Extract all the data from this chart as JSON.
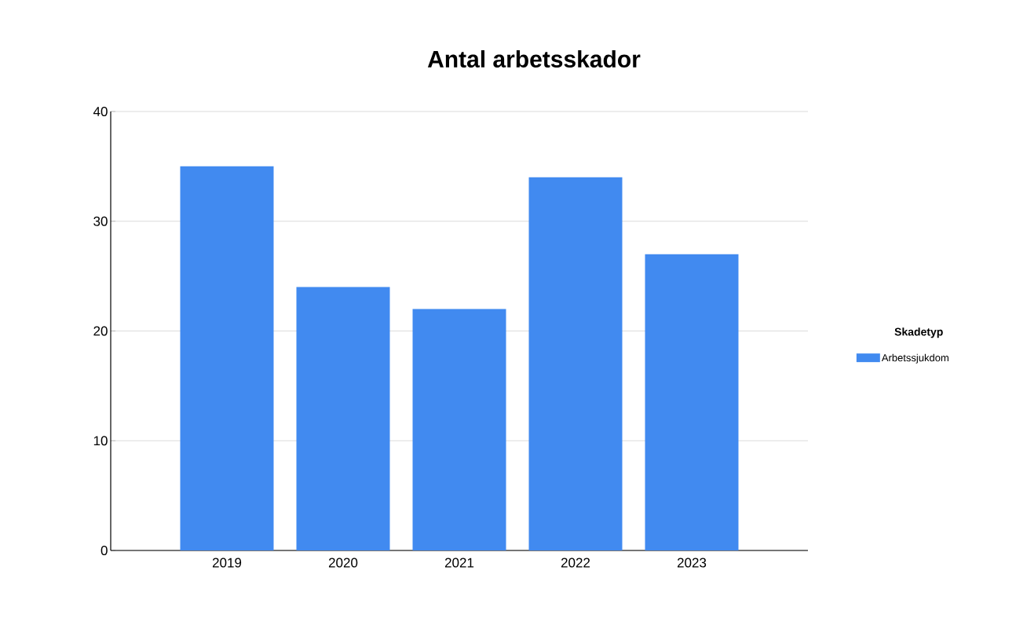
{
  "chart_data": {
    "type": "bar",
    "title": "Antal arbetsskador",
    "legend_title": "Skadetyp",
    "categories": [
      "2019",
      "2020",
      "2021",
      "2022",
      "2023"
    ],
    "series": [
      {
        "name": "Arbetssjukdom",
        "color": "#418af0",
        "values": [
          35,
          24,
          22,
          34,
          27
        ]
      }
    ],
    "ylim": [
      0,
      40
    ],
    "yticks": [
      0,
      10,
      20,
      30,
      40
    ],
    "grid": "y",
    "legend": "right"
  }
}
